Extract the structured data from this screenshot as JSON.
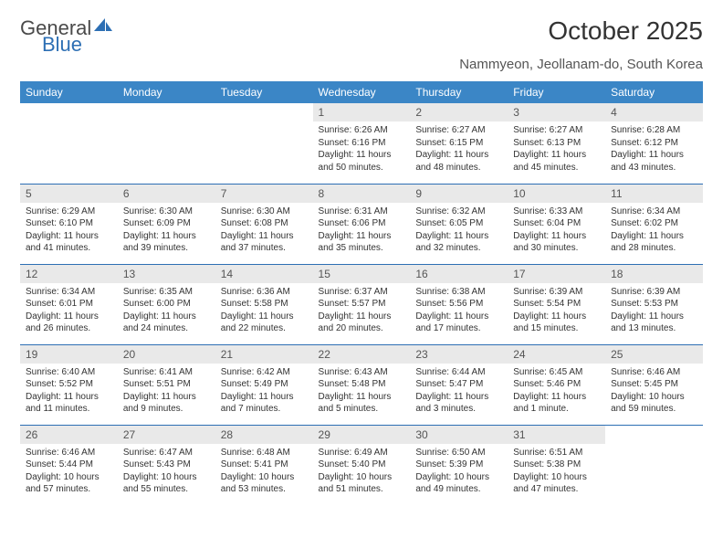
{
  "brand": {
    "part1": "General",
    "part2": "Blue"
  },
  "title": "October 2025",
  "location": "Nammyeon, Jeollanam-do, South Korea",
  "colors": {
    "header_bg": "#3b86c6",
    "header_text": "#ffffff",
    "daynum_bg": "#e9e9e9",
    "border": "#2d6fb4",
    "brand_gray": "#4a4a4a",
    "brand_blue": "#2d6fb4"
  },
  "dayNames": [
    "Sunday",
    "Monday",
    "Tuesday",
    "Wednesday",
    "Thursday",
    "Friday",
    "Saturday"
  ],
  "weeks": [
    [
      null,
      null,
      null,
      {
        "n": "1",
        "sr": "6:26 AM",
        "ss": "6:16 PM",
        "dl": "11 hours and 50 minutes."
      },
      {
        "n": "2",
        "sr": "6:27 AM",
        "ss": "6:15 PM",
        "dl": "11 hours and 48 minutes."
      },
      {
        "n": "3",
        "sr": "6:27 AM",
        "ss": "6:13 PM",
        "dl": "11 hours and 45 minutes."
      },
      {
        "n": "4",
        "sr": "6:28 AM",
        "ss": "6:12 PM",
        "dl": "11 hours and 43 minutes."
      }
    ],
    [
      {
        "n": "5",
        "sr": "6:29 AM",
        "ss": "6:10 PM",
        "dl": "11 hours and 41 minutes."
      },
      {
        "n": "6",
        "sr": "6:30 AM",
        "ss": "6:09 PM",
        "dl": "11 hours and 39 minutes."
      },
      {
        "n": "7",
        "sr": "6:30 AM",
        "ss": "6:08 PM",
        "dl": "11 hours and 37 minutes."
      },
      {
        "n": "8",
        "sr": "6:31 AM",
        "ss": "6:06 PM",
        "dl": "11 hours and 35 minutes."
      },
      {
        "n": "9",
        "sr": "6:32 AM",
        "ss": "6:05 PM",
        "dl": "11 hours and 32 minutes."
      },
      {
        "n": "10",
        "sr": "6:33 AM",
        "ss": "6:04 PM",
        "dl": "11 hours and 30 minutes."
      },
      {
        "n": "11",
        "sr": "6:34 AM",
        "ss": "6:02 PM",
        "dl": "11 hours and 28 minutes."
      }
    ],
    [
      {
        "n": "12",
        "sr": "6:34 AM",
        "ss": "6:01 PM",
        "dl": "11 hours and 26 minutes."
      },
      {
        "n": "13",
        "sr": "6:35 AM",
        "ss": "6:00 PM",
        "dl": "11 hours and 24 minutes."
      },
      {
        "n": "14",
        "sr": "6:36 AM",
        "ss": "5:58 PM",
        "dl": "11 hours and 22 minutes."
      },
      {
        "n": "15",
        "sr": "6:37 AM",
        "ss": "5:57 PM",
        "dl": "11 hours and 20 minutes."
      },
      {
        "n": "16",
        "sr": "6:38 AM",
        "ss": "5:56 PM",
        "dl": "11 hours and 17 minutes."
      },
      {
        "n": "17",
        "sr": "6:39 AM",
        "ss": "5:54 PM",
        "dl": "11 hours and 15 minutes."
      },
      {
        "n": "18",
        "sr": "6:39 AM",
        "ss": "5:53 PM",
        "dl": "11 hours and 13 minutes."
      }
    ],
    [
      {
        "n": "19",
        "sr": "6:40 AM",
        "ss": "5:52 PM",
        "dl": "11 hours and 11 minutes."
      },
      {
        "n": "20",
        "sr": "6:41 AM",
        "ss": "5:51 PM",
        "dl": "11 hours and 9 minutes."
      },
      {
        "n": "21",
        "sr": "6:42 AM",
        "ss": "5:49 PM",
        "dl": "11 hours and 7 minutes."
      },
      {
        "n": "22",
        "sr": "6:43 AM",
        "ss": "5:48 PM",
        "dl": "11 hours and 5 minutes."
      },
      {
        "n": "23",
        "sr": "6:44 AM",
        "ss": "5:47 PM",
        "dl": "11 hours and 3 minutes."
      },
      {
        "n": "24",
        "sr": "6:45 AM",
        "ss": "5:46 PM",
        "dl": "11 hours and 1 minute."
      },
      {
        "n": "25",
        "sr": "6:46 AM",
        "ss": "5:45 PM",
        "dl": "10 hours and 59 minutes."
      }
    ],
    [
      {
        "n": "26",
        "sr": "6:46 AM",
        "ss": "5:44 PM",
        "dl": "10 hours and 57 minutes."
      },
      {
        "n": "27",
        "sr": "6:47 AM",
        "ss": "5:43 PM",
        "dl": "10 hours and 55 minutes."
      },
      {
        "n": "28",
        "sr": "6:48 AM",
        "ss": "5:41 PM",
        "dl": "10 hours and 53 minutes."
      },
      {
        "n": "29",
        "sr": "6:49 AM",
        "ss": "5:40 PM",
        "dl": "10 hours and 51 minutes."
      },
      {
        "n": "30",
        "sr": "6:50 AM",
        "ss": "5:39 PM",
        "dl": "10 hours and 49 minutes."
      },
      {
        "n": "31",
        "sr": "6:51 AM",
        "ss": "5:38 PM",
        "dl": "10 hours and 47 minutes."
      },
      null
    ]
  ],
  "labels": {
    "sunrise": "Sunrise:",
    "sunset": "Sunset:",
    "daylight": "Daylight:"
  }
}
